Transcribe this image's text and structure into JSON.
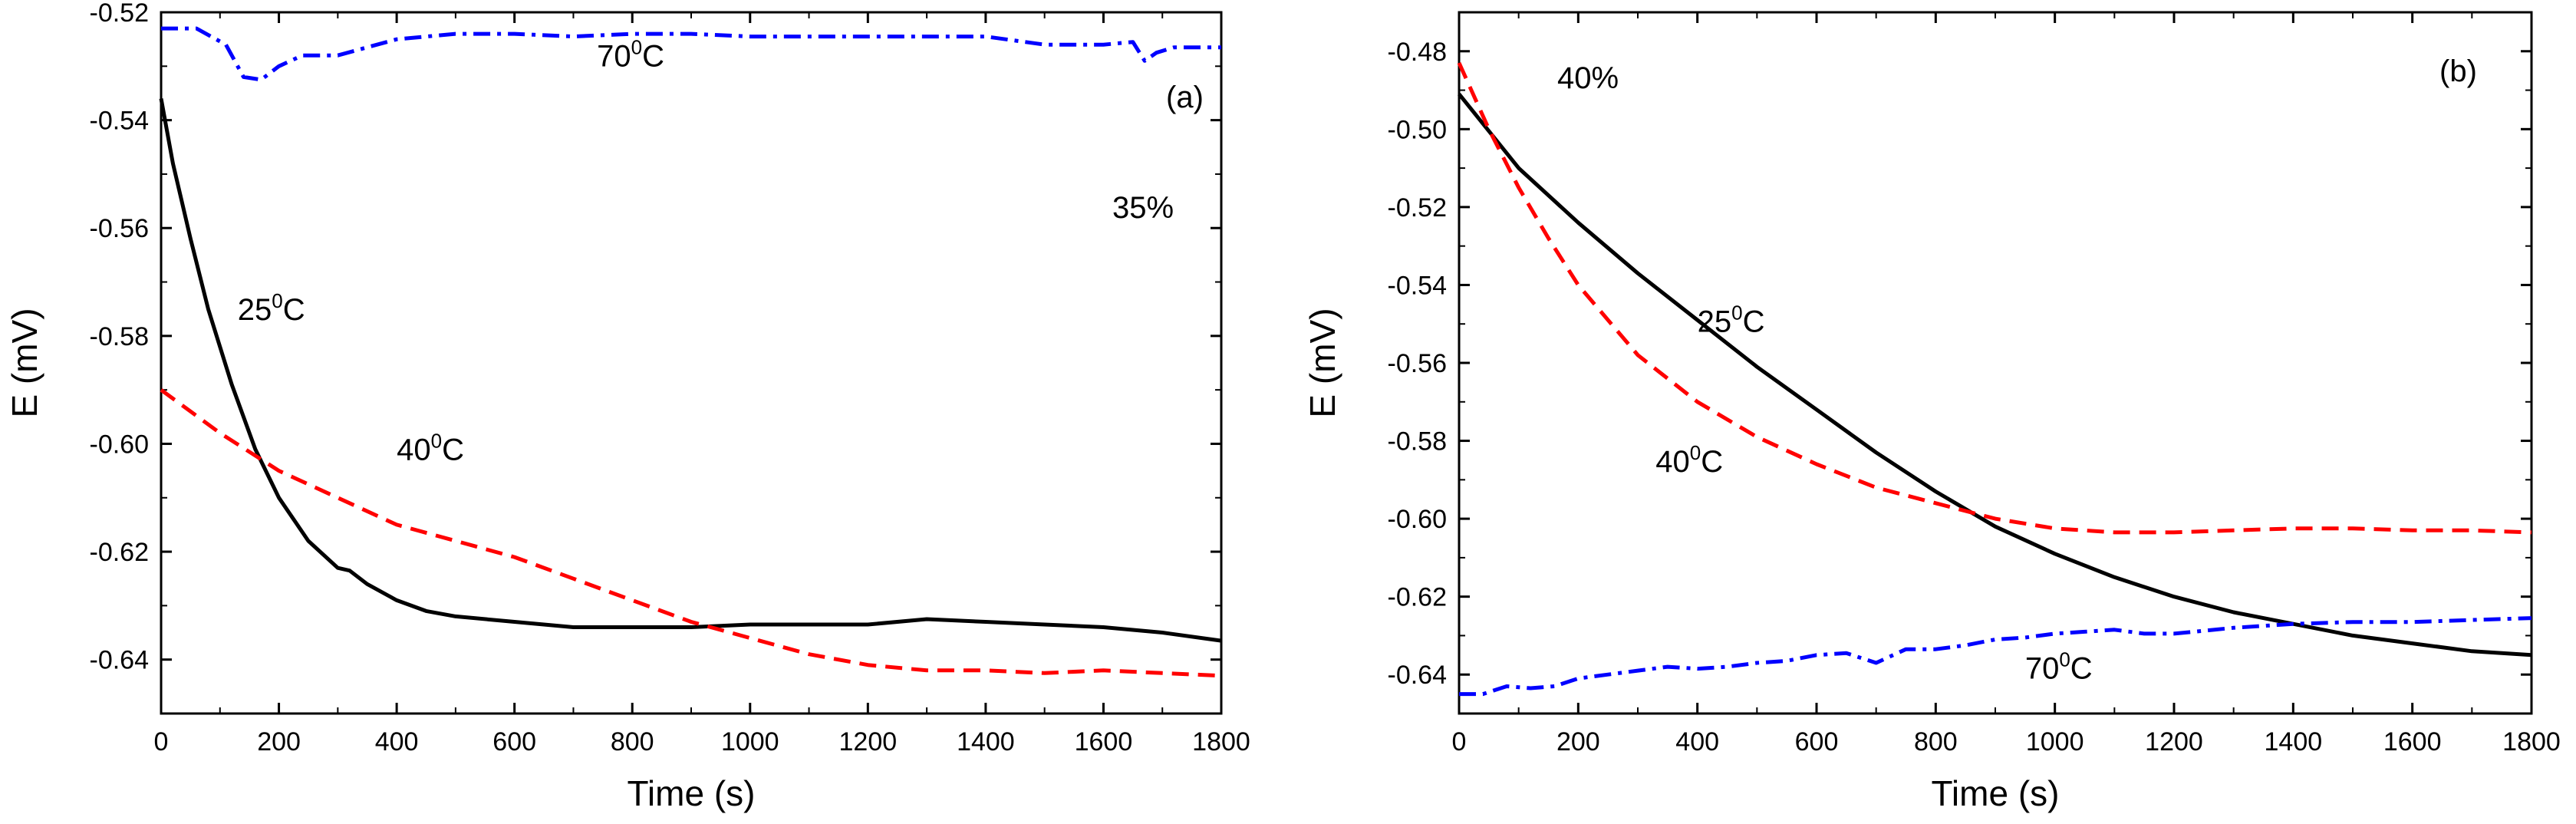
{
  "chart_data": [
    {
      "type": "line",
      "panel_label": "(a)",
      "concentration_label": "35%",
      "xlabel": "Time (s)",
      "ylabel": "E (mV)",
      "xlim": [
        0,
        1800
      ],
      "ylim": [
        -0.65,
        -0.52
      ],
      "xticks": [
        0,
        200,
        400,
        600,
        800,
        1000,
        1200,
        1400,
        1600,
        1800
      ],
      "yticks": [
        -0.64,
        -0.62,
        -0.6,
        -0.58,
        -0.56,
        -0.54,
        -0.52
      ],
      "ytick_labels": [
        "-0.64",
        "-0.62",
        "-0.60",
        "-0.58",
        "-0.56",
        "-0.54",
        "-0.52"
      ],
      "series": [
        {
          "name": "25 °C",
          "label_base": "25",
          "label_sup": "0",
          "label_unit": "C",
          "color": "#000000",
          "dash": "solid",
          "label_at": [
            130,
            -0.577
          ],
          "x": [
            0,
            20,
            50,
            80,
            120,
            160,
            200,
            250,
            300,
            320,
            350,
            400,
            450,
            500,
            600,
            700,
            800,
            900,
            1000,
            1100,
            1200,
            1300,
            1400,
            1500,
            1600,
            1700,
            1800
          ],
          "y": [
            -0.536,
            -0.548,
            -0.562,
            -0.575,
            -0.589,
            -0.601,
            -0.61,
            -0.618,
            -0.623,
            -0.6235,
            -0.626,
            -0.629,
            -0.631,
            -0.632,
            -0.633,
            -0.634,
            -0.634,
            -0.634,
            -0.6335,
            -0.6335,
            -0.6335,
            -0.6325,
            -0.633,
            -0.6335,
            -0.634,
            -0.635,
            -0.6365
          ]
        },
        {
          "name": "40 °C",
          "label_base": "40",
          "label_sup": "0",
          "label_unit": "C",
          "color": "#ff0000",
          "dash": "dash",
          "label_at": [
            400,
            -0.603
          ],
          "x": [
            0,
            100,
            200,
            300,
            400,
            500,
            600,
            700,
            800,
            900,
            1000,
            1100,
            1200,
            1300,
            1400,
            1500,
            1600,
            1700,
            1800
          ],
          "y": [
            -0.59,
            -0.598,
            -0.605,
            -0.61,
            -0.615,
            -0.618,
            -0.621,
            -0.625,
            -0.629,
            -0.633,
            -0.636,
            -0.639,
            -0.641,
            -0.642,
            -0.642,
            -0.6425,
            -0.642,
            -0.6425,
            -0.643
          ]
        },
        {
          "name": "70 °C",
          "label_base": "70",
          "label_sup": "0",
          "label_unit": "C",
          "color": "#0000ff",
          "dash": "dashdot",
          "label_at": [
            740,
            -0.53
          ],
          "x": [
            0,
            60,
            110,
            140,
            170,
            200,
            240,
            300,
            400,
            500,
            600,
            700,
            800,
            900,
            1000,
            1100,
            1200,
            1300,
            1400,
            1500,
            1600,
            1650,
            1670,
            1690,
            1720,
            1800
          ],
          "y": [
            -0.523,
            -0.523,
            -0.526,
            -0.532,
            -0.5325,
            -0.53,
            -0.528,
            -0.528,
            -0.525,
            -0.524,
            -0.524,
            -0.5245,
            -0.524,
            -0.524,
            -0.5245,
            -0.5245,
            -0.5245,
            -0.5245,
            -0.5245,
            -0.526,
            -0.526,
            -0.5255,
            -0.529,
            -0.5275,
            -0.5265,
            -0.5265
          ]
        }
      ]
    },
    {
      "type": "line",
      "panel_label": "(b)",
      "concentration_label": "40%",
      "xlabel": "Time (s)",
      "ylabel": "E (mV)",
      "xlim": [
        0,
        1800
      ],
      "ylim": [
        -0.65,
        -0.47
      ],
      "xticks": [
        0,
        200,
        400,
        600,
        800,
        1000,
        1200,
        1400,
        1600,
        1800
      ],
      "yticks": [
        -0.64,
        -0.62,
        -0.6,
        -0.58,
        -0.56,
        -0.54,
        -0.52,
        -0.5,
        -0.48
      ],
      "ytick_labels": [
        "-0.64",
        "-0.62",
        "-0.60",
        "-0.58",
        "-0.56",
        "-0.54",
        "-0.52",
        "-0.50",
        "-0.48"
      ],
      "series": [
        {
          "name": "25 °C",
          "label_base": "25",
          "label_sup": "0",
          "label_unit": "C",
          "color": "#000000",
          "dash": "solid",
          "label_at": [
            400,
            -0.552
          ],
          "x": [
            0,
            100,
            200,
            300,
            400,
            500,
            600,
            700,
            800,
            900,
            1000,
            1100,
            1200,
            1300,
            1400,
            1500,
            1600,
            1700,
            1800
          ],
          "y": [
            -0.491,
            -0.51,
            -0.524,
            -0.537,
            -0.549,
            -0.561,
            -0.572,
            -0.583,
            -0.593,
            -0.602,
            -0.609,
            -0.615,
            -0.62,
            -0.624,
            -0.627,
            -0.63,
            -0.632,
            -0.634,
            -0.635
          ]
        },
        {
          "name": "40 °C",
          "label_base": "40",
          "label_sup": "0",
          "label_unit": "C",
          "color": "#ff0000",
          "dash": "dash",
          "label_at": [
            330,
            -0.588
          ],
          "x": [
            0,
            50,
            100,
            150,
            200,
            300,
            400,
            500,
            600,
            700,
            800,
            900,
            1000,
            1100,
            1200,
            1300,
            1400,
            1500,
            1600,
            1700,
            1800
          ],
          "y": [
            -0.483,
            -0.5,
            -0.515,
            -0.528,
            -0.54,
            -0.558,
            -0.57,
            -0.579,
            -0.586,
            -0.592,
            -0.596,
            -0.6,
            -0.6025,
            -0.6035,
            -0.6035,
            -0.603,
            -0.6025,
            -0.6025,
            -0.603,
            -0.603,
            -0.6035
          ]
        },
        {
          "name": "70 °C",
          "label_base": "70",
          "label_sup": "0",
          "label_unit": "C",
          "color": "#0000ff",
          "dash": "dashdot",
          "label_at": [
            950,
            -0.641
          ],
          "x": [
            0,
            40,
            80,
            120,
            160,
            200,
            250,
            300,
            350,
            400,
            450,
            500,
            550,
            600,
            650,
            700,
            750,
            800,
            850,
            900,
            950,
            1000,
            1050,
            1100,
            1150,
            1200,
            1300,
            1400,
            1500,
            1600,
            1700,
            1800
          ],
          "y": [
            -0.645,
            -0.645,
            -0.643,
            -0.6435,
            -0.643,
            -0.641,
            -0.64,
            -0.639,
            -0.638,
            -0.6385,
            -0.638,
            -0.637,
            -0.6365,
            -0.635,
            -0.6345,
            -0.637,
            -0.6335,
            -0.6335,
            -0.6325,
            -0.631,
            -0.6305,
            -0.6295,
            -0.629,
            -0.6285,
            -0.6295,
            -0.6295,
            -0.628,
            -0.627,
            -0.6265,
            -0.6265,
            -0.626,
            -0.6255
          ]
        }
      ]
    }
  ]
}
